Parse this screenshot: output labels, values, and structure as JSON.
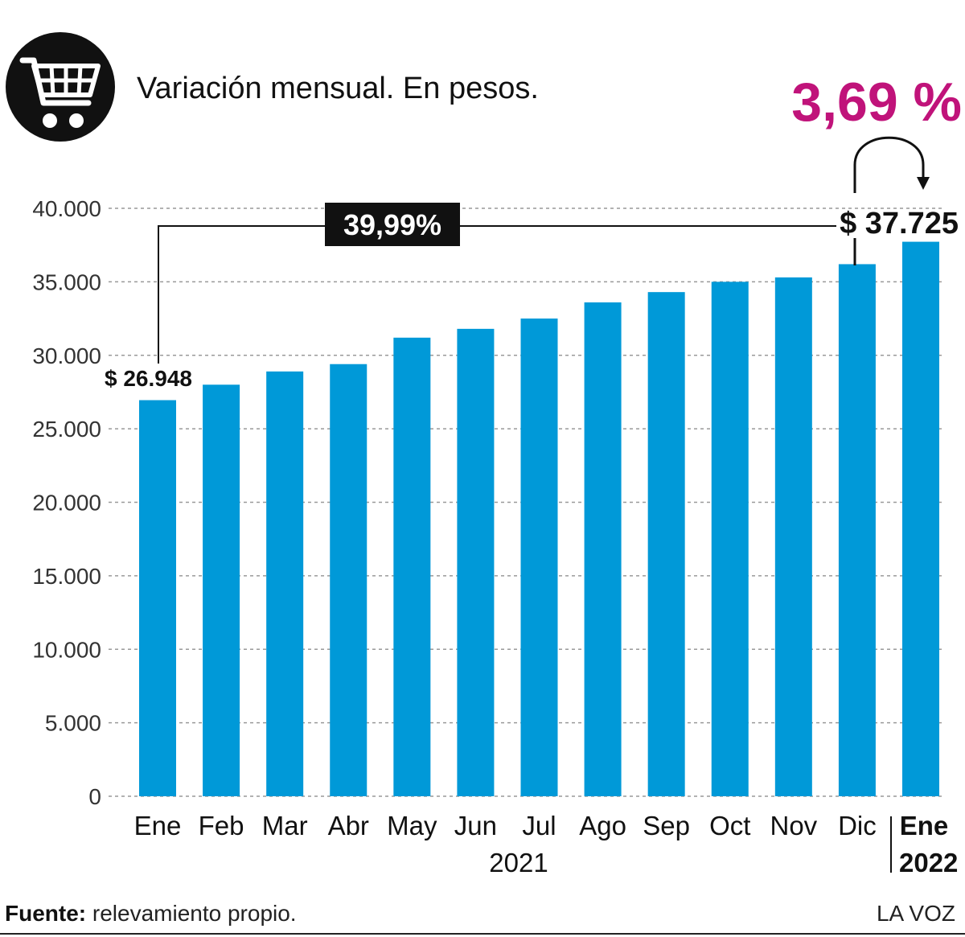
{
  "title": "Variación mensual. En pesos.",
  "icon": "shopping-cart-icon",
  "highlight_pct": "3,69 %",
  "total_pct": "39,99%",
  "start_value_label": "$ 26.948",
  "end_value_label": "$ 37.725",
  "year_2021": "2021",
  "year_2022": "2022",
  "footer": {
    "source_label": "Fuente:",
    "source_text": " relevamiento propio.",
    "brand": "LA VOZ"
  },
  "colors": {
    "bar": "#0099d8",
    "highlight": "#c0137a",
    "box": "#111111"
  },
  "chart_data": {
    "type": "bar",
    "categories": [
      "Ene",
      "Feb",
      "Mar",
      "Abr",
      "May",
      "Jun",
      "Jul",
      "Ago",
      "Sep",
      "Oct",
      "Nov",
      "Dic",
      "Ene"
    ],
    "values": [
      26948,
      28000,
      28900,
      29400,
      31200,
      31800,
      32500,
      33600,
      34300,
      35000,
      35300,
      36200,
      37725
    ],
    "ylim": [
      0,
      40000
    ],
    "yticks": [
      "0",
      "5.000",
      "10.000",
      "15.000",
      "20.000",
      "25.000",
      "30.000",
      "35.000",
      "40.000"
    ],
    "ytick_values": [
      0,
      5000,
      10000,
      15000,
      20000,
      25000,
      30000,
      35000,
      40000
    ],
    "grid": true
  }
}
